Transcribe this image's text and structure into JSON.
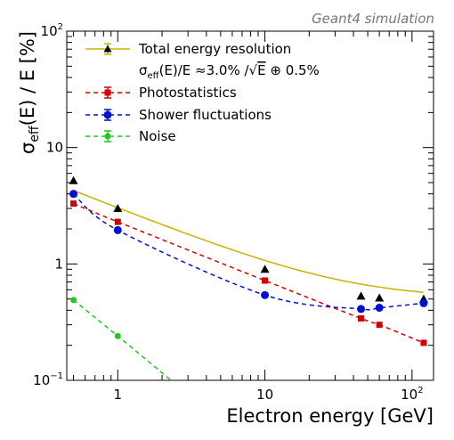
{
  "chart_data": {
    "type": "line",
    "annotation": "Geant4 simulation",
    "xlabel": "Electron energy [GeV]",
    "ylabel_parts": [
      "σ",
      "eff",
      "(E) / E [%]"
    ],
    "xscale": "log",
    "yscale": "log",
    "xlim": [
      0.45,
      140
    ],
    "ylim": [
      0.1,
      100
    ],
    "x_ticks": [
      {
        "value": 1,
        "label": "1"
      },
      {
        "value": 10,
        "label": "10"
      },
      {
        "value": 100,
        "label": "10",
        "exp": "2"
      }
    ],
    "y_ticks": [
      {
        "value": 0.1,
        "label": "10",
        "exp": "−1"
      },
      {
        "value": 1,
        "label": "1"
      },
      {
        "value": 10,
        "label": "10"
      },
      {
        "value": 100,
        "label": "10",
        "exp": "2"
      }
    ],
    "legend_position": "top-left",
    "fit_formula_parts": [
      "σ",
      "eff",
      "(E)/E ≈3.0% /",
      "√",
      "E",
      " ⊕ 0.5%"
    ],
    "series": [
      {
        "name": "Total energy resolution",
        "color": "#c8b400",
        "marker": "triangle",
        "line": "solid",
        "x": [
          0.5,
          1,
          10,
          45,
          60,
          120
        ],
        "y": [
          5.2,
          3.0,
          0.9,
          0.53,
          0.51,
          0.5
        ],
        "fit": {
          "stochastic": 3.0,
          "constant": 0.5
        }
      },
      {
        "name": "Photostatistics",
        "color": "#d40000",
        "marker": "square",
        "line": "dashed",
        "x": [
          0.5,
          1,
          10,
          45,
          60,
          120
        ],
        "y": [
          3.3,
          2.3,
          0.72,
          0.34,
          0.3,
          0.21
        ]
      },
      {
        "name": "Shower fluctuations",
        "color": "#0010d4",
        "marker": "circle",
        "line": "dashed",
        "x": [
          0.5,
          1,
          10,
          45,
          60,
          120
        ],
        "y": [
          4.0,
          1.95,
          0.54,
          0.41,
          0.42,
          0.46
        ]
      },
      {
        "name": "Noise",
        "color": "#1ec81e",
        "marker": "circle",
        "line": "dashed",
        "x": [
          0.5,
          1,
          2.3
        ],
        "y": [
          0.49,
          0.24,
          0.1
        ]
      }
    ]
  }
}
